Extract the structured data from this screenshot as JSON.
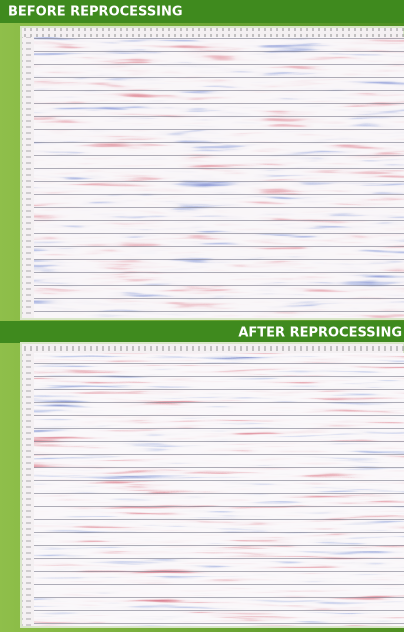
{
  "panels": [
    {
      "title": "BEFORE REPROCESSING"
    },
    {
      "title": "AFTER REPROCESSING"
    }
  ]
}
